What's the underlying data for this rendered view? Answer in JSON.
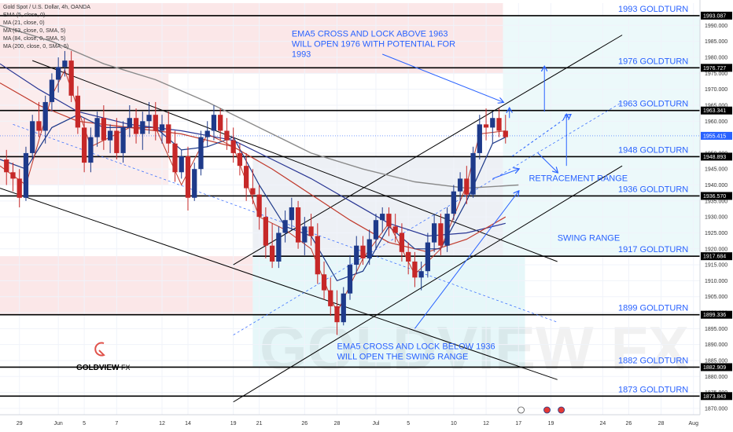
{
  "chart_data": {
    "type": "candlestick",
    "title": "Gold Spot / U.S. Dollar, 4h, OANDA",
    "indicators": [
      "EMA (5, close, 0)",
      "MA (21, close, 0)",
      "MA (63, close, 0, SMA, 5)",
      "MA (84, close, 0, SMA, 5)",
      "MA (200, close, 0, SMA, 5)"
    ],
    "ylim": [
      1868,
      1997
    ],
    "xlim": [
      0,
      54
    ],
    "y_ticks": [
      1870,
      1875,
      1880,
      1885,
      1890,
      1895,
      1900,
      1905,
      1910,
      1915,
      1920,
      1925,
      1930,
      1935,
      1940,
      1945,
      1950,
      1960,
      1965,
      1970,
      1975,
      1980,
      1985,
      1990
    ],
    "x_ticks": [
      {
        "x": 1.5,
        "label": "29"
      },
      {
        "x": 4.5,
        "label": "Jun"
      },
      {
        "x": 6.5,
        "label": "5"
      },
      {
        "x": 9,
        "label": "7"
      },
      {
        "x": 12.5,
        "label": "12"
      },
      {
        "x": 14.5,
        "label": "14"
      },
      {
        "x": 18,
        "label": "19"
      },
      {
        "x": 20,
        "label": "21"
      },
      {
        "x": 23.5,
        "label": "26"
      },
      {
        "x": 26,
        "label": "28"
      },
      {
        "x": 29,
        "label": "Jul"
      },
      {
        "x": 31.5,
        "label": "5"
      },
      {
        "x": 35,
        "label": "10"
      },
      {
        "x": 37.5,
        "label": "12"
      },
      {
        "x": 40,
        "label": "17"
      },
      {
        "x": 42.5,
        "label": "19"
      },
      {
        "x": 46.5,
        "label": "24"
      },
      {
        "x": 48.5,
        "label": "26"
      },
      {
        "x": 51,
        "label": "28"
      },
      {
        "x": 53.5,
        "label": "Aug"
      }
    ],
    "levels": [
      {
        "value": 1993.087,
        "tag": "1993.087",
        "label": "1993 GOLDTURN"
      },
      {
        "value": 1976.727,
        "tag": "1976.727",
        "label": "1976 GOLDTURN"
      },
      {
        "value": 1963.341,
        "tag": "1963.341",
        "label": "1963 GOLDTURN"
      },
      {
        "value": 1948.893,
        "tag": "1948.893",
        "label": "1948 GOLDTURN"
      },
      {
        "value": 1936.57,
        "tag": "1936.570",
        "label": "1936 GOLDTURN"
      },
      {
        "value": 1917.684,
        "tag": "1917.684",
        "label": "1917 GOLDTURN"
      },
      {
        "value": 1899.336,
        "tag": "1899.336",
        "label": "1899 GOLDTURN"
      },
      {
        "value": 1882.909,
        "tag": "1882.909",
        "label": "1882 GOLDTURN"
      },
      {
        "value": 1873.843,
        "tag": "1873.843",
        "label": "1873 GOLDTURN"
      }
    ],
    "current_price": {
      "value": 1955.415,
      "tag": "1955.415"
    },
    "annotations": [
      {
        "lines": [
          "EMA5 CROSS AND LOCK ABOVE 1963",
          "WILL OPEN 1976 WITH POTENTIAL FOR",
          "1993"
        ],
        "x": 22.5,
        "y": 1986.5
      },
      {
        "lines": [
          "RETRACEMENT RANGE"
        ],
        "x": 40.8,
        "y": 1941.2
      },
      {
        "lines": [
          "SWING RANGE"
        ],
        "x": 43,
        "y": 1922.5
      },
      {
        "lines": [
          "EMA5 CROSS AND LOCK BELOW 1936",
          "WILL OPEN THE SWING RANGE"
        ],
        "x": 26,
        "y": 1888.5
      }
    ],
    "candles": [
      [
        0.5,
        1948,
        1951,
        1940,
        1944
      ],
      [
        1,
        1944,
        1947,
        1938,
        1942
      ],
      [
        1.5,
        1942,
        1945,
        1933,
        1936
      ],
      [
        2,
        1936,
        1952,
        1935,
        1950
      ],
      [
        2.5,
        1950,
        1962,
        1948,
        1960
      ],
      [
        3,
        1960,
        1966,
        1955,
        1957
      ],
      [
        3.5,
        1957,
        1968,
        1953,
        1966
      ],
      [
        4,
        1966,
        1975,
        1963,
        1973
      ],
      [
        4.5,
        1973,
        1980,
        1969,
        1977
      ],
      [
        5,
        1977,
        1982,
        1974,
        1979
      ],
      [
        5.5,
        1979,
        1982,
        1966,
        1968
      ],
      [
        6,
        1968,
        1971,
        1956,
        1958
      ],
      [
        6.5,
        1958,
        1961,
        1944,
        1947
      ],
      [
        7,
        1947,
        1958,
        1944,
        1955
      ],
      [
        7.5,
        1955,
        1963,
        1952,
        1961
      ],
      [
        8,
        1961,
        1965,
        1951,
        1954
      ],
      [
        8.5,
        1954,
        1959,
        1950,
        1957
      ],
      [
        9,
        1957,
        1961,
        1948,
        1950
      ],
      [
        9.5,
        1950,
        1960,
        1947,
        1958
      ],
      [
        10,
        1958,
        1965,
        1955,
        1961
      ],
      [
        10.5,
        1961,
        1964,
        1953,
        1956
      ],
      [
        11,
        1956,
        1963,
        1951,
        1960
      ],
      [
        11.5,
        1960,
        1966,
        1956,
        1962
      ],
      [
        12,
        1962,
        1966,
        1954,
        1957
      ],
      [
        12.5,
        1957,
        1962,
        1953,
        1959
      ],
      [
        13,
        1959,
        1963,
        1950,
        1953
      ],
      [
        13.5,
        1953,
        1957,
        1941,
        1944
      ],
      [
        14,
        1944,
        1951,
        1942,
        1949
      ],
      [
        14.5,
        1949,
        1952,
        1932,
        1936
      ],
      [
        15,
        1936,
        1947,
        1935,
        1945
      ],
      [
        15.5,
        1945,
        1957,
        1943,
        1955
      ],
      [
        16,
        1955,
        1960,
        1952,
        1957
      ],
      [
        16.5,
        1957,
        1965,
        1954,
        1962
      ],
      [
        17,
        1962,
        1964,
        1954,
        1957
      ],
      [
        17.5,
        1957,
        1961,
        1951,
        1954
      ],
      [
        18,
        1954,
        1958,
        1947,
        1950
      ],
      [
        18.5,
        1950,
        1953,
        1943,
        1946
      ],
      [
        19,
        1946,
        1950,
        1935,
        1939
      ],
      [
        19.5,
        1939,
        1945,
        1934,
        1937
      ],
      [
        20,
        1937,
        1940,
        1926,
        1930
      ],
      [
        20.5,
        1930,
        1933,
        1917,
        1921
      ],
      [
        21,
        1921,
        1928,
        1914,
        1916
      ],
      [
        21.5,
        1916,
        1927,
        1914,
        1925
      ],
      [
        22,
        1925,
        1932,
        1922,
        1929
      ],
      [
        22.5,
        1929,
        1936,
        1926,
        1933
      ],
      [
        23,
        1933,
        1935,
        1920,
        1922
      ],
      [
        23.5,
        1922,
        1930,
        1918,
        1927
      ],
      [
        24,
        1927,
        1931,
        1921,
        1924
      ],
      [
        24.5,
        1924,
        1928,
        1909,
        1912
      ],
      [
        25,
        1912,
        1916,
        1904,
        1907
      ],
      [
        25.5,
        1907,
        1911,
        1899,
        1902
      ],
      [
        26,
        1902,
        1907,
        1893,
        1897
      ],
      [
        26.5,
        1897,
        1908,
        1896,
        1906
      ],
      [
        27,
        1906,
        1918,
        1904,
        1915
      ],
      [
        27.5,
        1915,
        1924,
        1912,
        1921
      ],
      [
        28,
        1921,
        1924,
        1915,
        1917
      ],
      [
        28.5,
        1917,
        1926,
        1915,
        1923
      ],
      [
        29,
        1923,
        1931,
        1920,
        1929
      ],
      [
        29.5,
        1929,
        1933,
        1925,
        1931
      ],
      [
        30,
        1931,
        1933,
        1924,
        1927
      ],
      [
        30.5,
        1927,
        1931,
        1922,
        1925
      ],
      [
        31,
        1925,
        1928,
        1916,
        1919
      ],
      [
        31.5,
        1919,
        1922,
        1912,
        1916
      ],
      [
        32,
        1916,
        1919,
        1908,
        1911
      ],
      [
        32.5,
        1911,
        1916,
        1907,
        1913
      ],
      [
        33,
        1913,
        1925,
        1911,
        1922
      ],
      [
        33.5,
        1922,
        1931,
        1919,
        1928
      ],
      [
        34,
        1928,
        1931,
        1918,
        1921
      ],
      [
        34.5,
        1921,
        1933,
        1919,
        1931
      ],
      [
        35,
        1931,
        1940,
        1929,
        1938
      ],
      [
        35.5,
        1938,
        1944,
        1935,
        1942
      ],
      [
        36,
        1942,
        1946,
        1934,
        1937
      ],
      [
        36.5,
        1937,
        1952,
        1936,
        1950
      ],
      [
        37,
        1950,
        1962,
        1948,
        1959
      ],
      [
        37.5,
        1959,
        1964,
        1954,
        1958
      ],
      [
        38,
        1958,
        1963,
        1953,
        1961
      ],
      [
        38.5,
        1961,
        1964,
        1955,
        1957
      ],
      [
        39,
        1957,
        1962,
        1953,
        1955
      ]
    ]
  }
}
